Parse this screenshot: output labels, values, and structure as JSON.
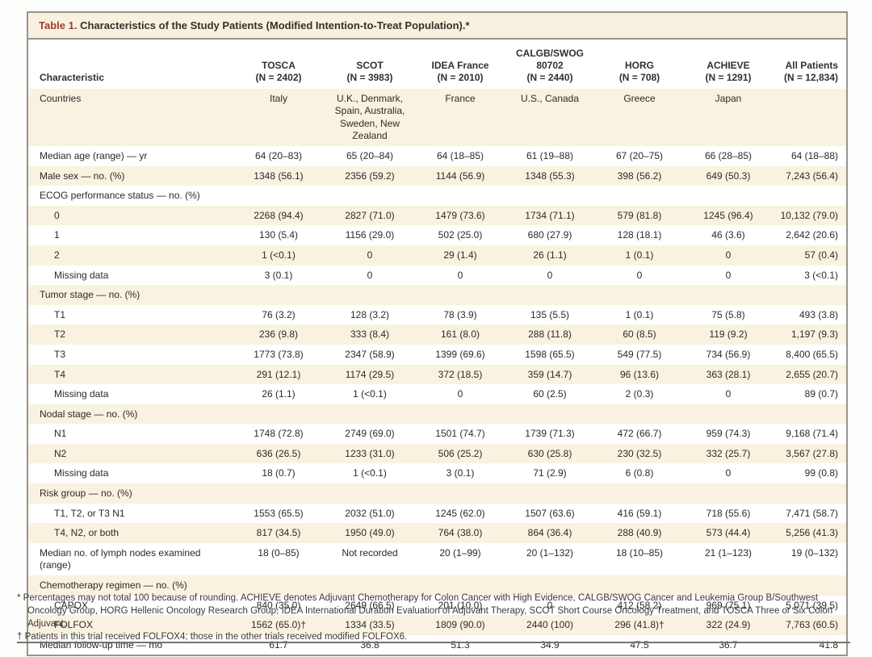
{
  "title": {
    "label": "Table 1.",
    "text": "Characteristics of the Study Patients (Modified Intention-to-Treat Population).*"
  },
  "table": {
    "characteristic_header": "Characteristic",
    "columns": [
      {
        "name": "TOSCA",
        "n": "(N = 2402)"
      },
      {
        "name": "SCOT",
        "n": "(N = 3983)"
      },
      {
        "name": "IDEA France",
        "n": "(N = 2010)"
      },
      {
        "name": "CALGB/SWOG 80702",
        "n": "(N = 2440)"
      },
      {
        "name": "HORG",
        "n": "(N = 708)"
      },
      {
        "name": "ACHIEVE",
        "n": "(N = 1291)"
      },
      {
        "name": "All Patients",
        "n": "(N = 12,834)"
      }
    ],
    "rows": [
      {
        "label": "Countries",
        "indent": 0,
        "section": false,
        "values": [
          "Italy",
          "U.K., Denmark, Spain, Australia, Sweden, New Zealand",
          "France",
          "U.S., Canada",
          "Greece",
          "Japan",
          ""
        ]
      },
      {
        "label": "Median age (range) — yr",
        "indent": 0,
        "section": false,
        "values": [
          "64 (20–83)",
          "65 (20–84)",
          "64 (18–85)",
          "61 (19–88)",
          "67 (20–75)",
          "66 (28–85)",
          "64 (18–88)"
        ]
      },
      {
        "label": "Male sex — no. (%)",
        "indent": 0,
        "section": false,
        "values": [
          "1348 (56.1)",
          "2356 (59.2)",
          "1144 (56.9)",
          "1348 (55.3)",
          "398 (56.2)",
          "649 (50.3)",
          "7,243 (56.4)"
        ]
      },
      {
        "label": "ECOG performance status — no. (%)",
        "indent": 0,
        "section": true,
        "values": [
          "",
          "",
          "",
          "",
          "",
          "",
          ""
        ]
      },
      {
        "label": "0",
        "indent": 1,
        "section": false,
        "values": [
          "2268 (94.4)",
          "2827 (71.0)",
          "1479 (73.6)",
          "1734 (71.1)",
          "579 (81.8)",
          "1245 (96.4)",
          "10,132 (79.0)"
        ]
      },
      {
        "label": "1",
        "indent": 1,
        "section": false,
        "values": [
          "130 (5.4)",
          "1156 (29.0)",
          "502 (25.0)",
          "680 (27.9)",
          "128 (18.1)",
          "46 (3.6)",
          "2,642 (20.6)"
        ]
      },
      {
        "label": "2",
        "indent": 1,
        "section": false,
        "values": [
          "1 (<0.1)",
          "0",
          "29 (1.4)",
          "26 (1.1)",
          "1 (0.1)",
          "0",
          "57 (0.4)"
        ]
      },
      {
        "label": "Missing data",
        "indent": 1,
        "section": false,
        "values": [
          "3 (0.1)",
          "0",
          "0",
          "0",
          "0",
          "0",
          "3 (<0.1)"
        ]
      },
      {
        "label": "Tumor stage — no. (%)",
        "indent": 0,
        "section": true,
        "values": [
          "",
          "",
          "",
          "",
          "",
          "",
          ""
        ]
      },
      {
        "label": "T1",
        "indent": 1,
        "section": false,
        "values": [
          "76 (3.2)",
          "128 (3.2)",
          "78 (3.9)",
          "135 (5.5)",
          "1 (0.1)",
          "75 (5.8)",
          "493 (3.8)"
        ]
      },
      {
        "label": "T2",
        "indent": 1,
        "section": false,
        "values": [
          "236 (9.8)",
          "333 (8.4)",
          "161 (8.0)",
          "288 (11.8)",
          "60 (8.5)",
          "119 (9.2)",
          "1,197 (9.3)"
        ]
      },
      {
        "label": "T3",
        "indent": 1,
        "section": false,
        "values": [
          "1773 (73.8)",
          "2347 (58.9)",
          "1399 (69.6)",
          "1598 (65.5)",
          "549 (77.5)",
          "734 (56.9)",
          "8,400 (65.5)"
        ]
      },
      {
        "label": "T4",
        "indent": 1,
        "section": false,
        "values": [
          "291 (12.1)",
          "1174 (29.5)",
          "372 (18.5)",
          "359 (14.7)",
          "96 (13.6)",
          "363 (28.1)",
          "2,655 (20.7)"
        ]
      },
      {
        "label": "Missing data",
        "indent": 1,
        "section": false,
        "values": [
          "26 (1.1)",
          "1 (<0.1)",
          "0",
          "60 (2.5)",
          "2 (0.3)",
          "0",
          "89 (0.7)"
        ]
      },
      {
        "label": "Nodal stage — no. (%)",
        "indent": 0,
        "section": true,
        "values": [
          "",
          "",
          "",
          "",
          "",
          "",
          ""
        ]
      },
      {
        "label": "N1",
        "indent": 1,
        "section": false,
        "values": [
          "1748 (72.8)",
          "2749 (69.0)",
          "1501 (74.7)",
          "1739 (71.3)",
          "472 (66.7)",
          "959 (74.3)",
          "9,168 (71.4)"
        ]
      },
      {
        "label": "N2",
        "indent": 1,
        "section": false,
        "values": [
          "636 (26.5)",
          "1233 (31.0)",
          "506 (25.2)",
          "630 (25.8)",
          "230 (32.5)",
          "332 (25.7)",
          "3,567 (27.8)"
        ]
      },
      {
        "label": "Missing data",
        "indent": 1,
        "section": false,
        "values": [
          "18 (0.7)",
          "1 (<0.1)",
          "3 (0.1)",
          "71 (2.9)",
          "6 (0.8)",
          "0",
          "99 (0.8)"
        ]
      },
      {
        "label": "Risk group — no. (%)",
        "indent": 0,
        "section": true,
        "values": [
          "",
          "",
          "",
          "",
          "",
          "",
          ""
        ]
      },
      {
        "label": "T1, T2, or T3 N1",
        "indent": 1,
        "section": false,
        "values": [
          "1553 (65.5)",
          "2032 (51.0)",
          "1245 (62.0)",
          "1507 (63.6)",
          "416 (59.1)",
          "718 (55.6)",
          "7,471 (58.7)"
        ]
      },
      {
        "label": "T4, N2, or both",
        "indent": 1,
        "section": false,
        "values": [
          "817 (34.5)",
          "1950 (49.0)",
          "764 (38.0)",
          "864 (36.4)",
          "288 (40.9)",
          "573 (44.4)",
          "5,256 (41.3)"
        ]
      },
      {
        "label": "Median no. of lymph nodes examined (range)",
        "indent": 0,
        "section": false,
        "values": [
          "18 (0–85)",
          "Not recorded",
          "20 (1–99)",
          "20 (1–132)",
          "18 (10–85)",
          "21 (1–123)",
          "19 (0–132)"
        ]
      },
      {
        "label": "Chemotherapy regimen — no. (%)",
        "indent": 0,
        "section": true,
        "values": [
          "",
          "",
          "",
          "",
          "",
          "",
          ""
        ]
      },
      {
        "label": "CAPOX",
        "indent": 1,
        "section": false,
        "values": [
          "840 (35.0)",
          "2649 (66.5)",
          "201 (10.0)",
          "0",
          "412 (58.2)",
          "969 (75.1)",
          "5,071 (39.5)"
        ]
      },
      {
        "label": "FOLFOX",
        "indent": 1,
        "section": false,
        "values": [
          "1562 (65.0)†",
          "1334 (33.5)",
          "1809 (90.0)",
          "2440 (100)",
          "296 (41.8)†",
          "322 (24.9)",
          "7,763 (60.5)"
        ]
      },
      {
        "label": "Median follow-up time — mo",
        "indent": 0,
        "section": false,
        "values": [
          "61.7",
          "36.8",
          "51.3",
          "34.9",
          "47.5",
          "36.7",
          "41.8"
        ]
      }
    ]
  },
  "footnotes": [
    {
      "marker": "*",
      "text": "Percentages may not total 100 because of rounding. ACHIEVE denotes Adjuvant Chemotherapy for Colon Cancer with High Evidence, CALGB/SWOG Cancer and Leukemia Group B/Southwest Oncology Group, HORG Hellenic Oncology Research Group, IDEA International Duration Evaluation of Adjuvant Therapy, SCOT Short Course Oncology Treatment, and TOSCA Three or Six Colon Adjuvant."
    },
    {
      "marker": "†",
      "text": "Patients in this trial received FOLFOX4; those in the other trials received modified FOLFOX6."
    }
  ],
  "colors": {
    "accent_red": "#a73a2c",
    "row_cream": "#faf2e0",
    "frame_border": "#97938d"
  }
}
